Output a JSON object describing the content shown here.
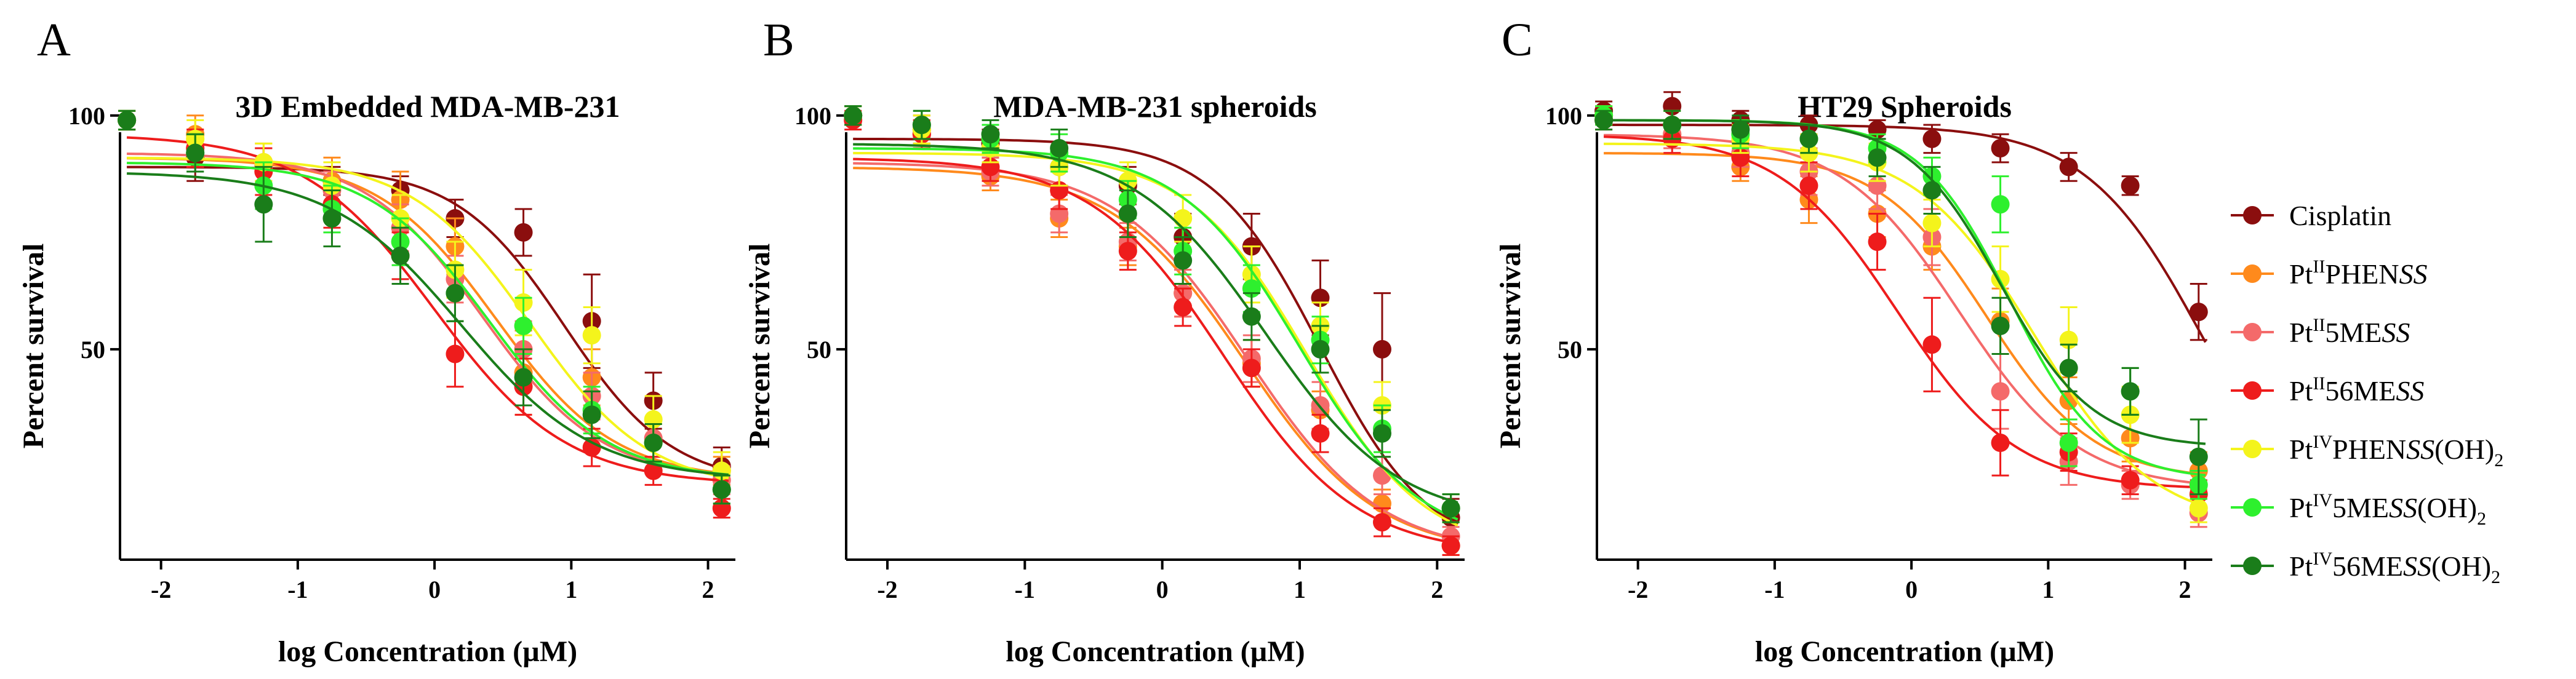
{
  "figure": {
    "legend": [
      {
        "id": "cis",
        "parts": [
          {
            "t": "Cisplatin"
          }
        ]
      },
      {
        "id": "p2phen",
        "parts": [
          {
            "t": "Pt"
          },
          {
            "t": "II",
            "sup": true
          },
          {
            "t": "PHEN"
          },
          {
            "t": "SS",
            "it": true
          }
        ]
      },
      {
        "id": "p2me5",
        "parts": [
          {
            "t": "Pt"
          },
          {
            "t": "II",
            "sup": true
          },
          {
            "t": "5ME"
          },
          {
            "t": "SS",
            "it": true
          }
        ]
      },
      {
        "id": "p2me56",
        "parts": [
          {
            "t": "Pt"
          },
          {
            "t": "II",
            "sup": true
          },
          {
            "t": "56ME"
          },
          {
            "t": "SS",
            "it": true
          }
        ]
      },
      {
        "id": "p4phen",
        "parts": [
          {
            "t": "Pt"
          },
          {
            "t": "IV",
            "sup": true
          },
          {
            "t": "PHEN"
          },
          {
            "t": "SS",
            "it": true
          },
          {
            "t": "(OH)"
          },
          {
            "t": "2",
            "sub": true
          }
        ]
      },
      {
        "id": "p4me5",
        "parts": [
          {
            "t": "Pt"
          },
          {
            "t": "IV",
            "sup": true
          },
          {
            "t": "5ME"
          },
          {
            "t": "SS",
            "it": true
          },
          {
            "t": "(OH)"
          },
          {
            "t": "2",
            "sub": true
          }
        ]
      },
      {
        "id": "p4me56",
        "parts": [
          {
            "t": "Pt"
          },
          {
            "t": "IV",
            "sup": true
          },
          {
            "t": "56ME"
          },
          {
            "t": "SS",
            "it": true
          },
          {
            "t": "(OH)"
          },
          {
            "t": "2",
            "sub": true
          }
        ]
      }
    ],
    "colors": {
      "cis": "#8b0e0e",
      "p2phen": "#ff8a1c",
      "p2me5": "#f46a6a",
      "p2me56": "#ee1c1c",
      "p4phen": "#f4f41c",
      "p4me5": "#2ef02e",
      "p4me56": "#1a7d1a"
    }
  },
  "chart_data": [
    {
      "panel": "A",
      "type": "scatter",
      "title": "3D Embedded MDA-MB-231",
      "xlabel": "log Concentration (µM)",
      "ylabel": "Percent survival",
      "xlim": [
        -2.3,
        2.2
      ],
      "ylim": [
        5,
        103
      ],
      "xticks": [
        -2,
        -1,
        0,
        1,
        2
      ],
      "yticks": [
        50,
        100
      ],
      "x": [
        -2.25,
        -1.75,
        -1.25,
        -0.75,
        -0.25,
        0.15,
        0.65,
        1.15,
        1.6,
        2.1
      ],
      "series": [
        {
          "id": "cis",
          "values": [
            99,
            91,
            89,
            86,
            84,
            78,
            75,
            56,
            39,
            25
          ],
          "errors": [
            2,
            5,
            4,
            3,
            3,
            4,
            5,
            10,
            6,
            4
          ],
          "curve": {
            "top": 89,
            "bottom": 21,
            "ec50": 0.95,
            "slope": 1.1
          }
        },
        {
          "id": "p2phen",
          "values": [
            99,
            96,
            90,
            86,
            82,
            72,
            45,
            44,
            30,
            24
          ],
          "errors": [
            2,
            4,
            4,
            5,
            6,
            6,
            9,
            6,
            4,
            3
          ],
          "curve": {
            "top": 91,
            "bottom": 22,
            "ec50": 0.45,
            "slope": 1.0
          }
        },
        {
          "id": "p2me5",
          "values": [
            99,
            93,
            89,
            84,
            76,
            65,
            50,
            40,
            31,
            22
          ],
          "errors": [
            2,
            4,
            4,
            4,
            5,
            5,
            6,
            5,
            4,
            3
          ],
          "curve": {
            "top": 92,
            "bottom": 22,
            "ec50": 0.35,
            "slope": 1.0
          }
        },
        {
          "id": "p2me56",
          "values": [
            99,
            93,
            88,
            81,
            70,
            49,
            42,
            29,
            24,
            16
          ],
          "errors": [
            2,
            4,
            5,
            5,
            5,
            7,
            6,
            4,
            3,
            2
          ],
          "curve": {
            "top": 96,
            "bottom": 21,
            "ec50": 0.0,
            "slope": 0.9
          }
        },
        {
          "id": "p4phen",
          "values": [
            99,
            95,
            90,
            85,
            78,
            67,
            60,
            53,
            35,
            24
          ],
          "errors": [
            2,
            4,
            4,
            5,
            5,
            6,
            7,
            6,
            5,
            4
          ],
          "curve": {
            "top": 91,
            "bottom": 20,
            "ec50": 0.7,
            "slope": 1.0
          }
        },
        {
          "id": "p4me5",
          "values": [
            99,
            92,
            85,
            80,
            73,
            62,
            55,
            37,
            30,
            20
          ],
          "errors": [
            2,
            4,
            5,
            5,
            5,
            6,
            6,
            5,
            4,
            3
          ],
          "curve": {
            "top": 90,
            "bottom": 22,
            "ec50": 0.4,
            "slope": 1.0
          }
        },
        {
          "id": "p4me56",
          "values": [
            99,
            92,
            81,
            78,
            70,
            62,
            44,
            36,
            30,
            20
          ],
          "errors": [
            2,
            4,
            8,
            6,
            6,
            6,
            6,
            5,
            4,
            3
          ],
          "curve": {
            "top": 88,
            "bottom": 22,
            "ec50": 0.2,
            "slope": 0.9
          }
        }
      ]
    },
    {
      "panel": "B",
      "type": "scatter",
      "title": "MDA-MB-231 spheroids",
      "xlabel": "log Concentration (µM)",
      "ylabel": "Percent survival",
      "xlim": [
        -2.3,
        2.2
      ],
      "ylim": [
        5,
        103
      ],
      "xticks": [
        -2,
        -1,
        0,
        1,
        2
      ],
      "yticks": [
        50,
        100
      ],
      "x": [
        -2.25,
        -1.75,
        -1.25,
        -0.75,
        -0.25,
        0.15,
        0.65,
        1.15,
        1.6,
        2.1
      ],
      "series": [
        {
          "id": "cis",
          "values": [
            100,
            97,
            94,
            89,
            85,
            74,
            72,
            61,
            50,
            14
          ],
          "errors": [
            2,
            3,
            3,
            4,
            4,
            5,
            7,
            8,
            12,
            4
          ],
          "curve": {
            "top": 95,
            "bottom": 6,
            "ec50": 1.15,
            "slope": 1.1
          }
        },
        {
          "id": "p2phen",
          "values": [
            100,
            96,
            87,
            78,
            72,
            62,
            47,
            37,
            17,
            8
          ],
          "errors": [
            2,
            3,
            3,
            4,
            4,
            5,
            5,
            4,
            3,
            2
          ],
          "curve": {
            "top": 89,
            "bottom": 6,
            "ec50": 0.6,
            "slope": 0.9
          }
        },
        {
          "id": "p2me5",
          "values": [
            100,
            96,
            88,
            79,
            73,
            62,
            48,
            38,
            23,
            10
          ],
          "errors": [
            2,
            3,
            3,
            4,
            4,
            5,
            5,
            5,
            4,
            2
          ],
          "curve": {
            "top": 90,
            "bottom": 6,
            "ec50": 0.62,
            "slope": 0.9
          }
        },
        {
          "id": "p2me56",
          "values": [
            99,
            96,
            89,
            84,
            71,
            59,
            46,
            32,
            13,
            8
          ],
          "errors": [
            2,
            3,
            3,
            4,
            4,
            4,
            4,
            4,
            3,
            2
          ],
          "curve": {
            "top": 91,
            "bottom": 6,
            "ec50": 0.45,
            "slope": 0.9
          }
        },
        {
          "id": "p4phen",
          "values": [
            100,
            97,
            93,
            89,
            86,
            78,
            66,
            55,
            38,
            16
          ],
          "errors": [
            2,
            3,
            3,
            4,
            4,
            5,
            6,
            5,
            5,
            3
          ],
          "curve": {
            "top": 92,
            "bottom": 6,
            "ec50": 1.05,
            "slope": 1.0
          }
        },
        {
          "id": "p4me5",
          "values": [
            100,
            98,
            95,
            92,
            82,
            71,
            63,
            52,
            33,
            16
          ],
          "errors": [
            2,
            3,
            3,
            4,
            4,
            5,
            5,
            5,
            5,
            3
          ],
          "curve": {
            "top": 93,
            "bottom": 8,
            "ec50": 1.0,
            "slope": 1.0
          }
        },
        {
          "id": "p4me56",
          "values": [
            100,
            98,
            96,
            93,
            79,
            69,
            57,
            50,
            32,
            16
          ],
          "errors": [
            2,
            3,
            3,
            4,
            5,
            5,
            5,
            5,
            5,
            3
          ],
          "curve": {
            "top": 94,
            "bottom": 13,
            "ec50": 0.75,
            "slope": 0.9
          }
        }
      ]
    },
    {
      "panel": "C",
      "type": "scatter",
      "title": "HT29 Spheroids",
      "xlabel": "log Concentration (µM)",
      "ylabel": "Percent survival",
      "xlim": [
        -2.3,
        2.2
      ],
      "ylim": [
        5,
        103
      ],
      "xticks": [
        -2,
        -1,
        0,
        1,
        2
      ],
      "yticks": [
        50,
        100
      ],
      "x": [
        -2.25,
        -1.75,
        -1.25,
        -0.75,
        -0.25,
        0.15,
        0.65,
        1.15,
        1.6,
        2.1
      ],
      "series": [
        {
          "id": "cis",
          "values": [
            101,
            102,
            99,
            98,
            97,
            95,
            93,
            89,
            85,
            58
          ],
          "errors": [
            2,
            3,
            2,
            2,
            2,
            3,
            3,
            3,
            2,
            6
          ],
          "curve": {
            "top": 98,
            "bottom": 5,
            "ec50": 2.15,
            "slope": 1.0
          }
        },
        {
          "id": "p2phen",
          "values": [
            100,
            96,
            89,
            82,
            79,
            72,
            56,
            39,
            31,
            24
          ],
          "errors": [
            2,
            3,
            3,
            5,
            5,
            5,
            7,
            5,
            5,
            4
          ],
          "curve": {
            "top": 92,
            "bottom": 22,
            "ec50": 0.55,
            "slope": 1.1
          }
        },
        {
          "id": "p2me5",
          "values": [
            100,
            96,
            92,
            88,
            85,
            74,
            41,
            26,
            21,
            15
          ],
          "errors": [
            2,
            3,
            3,
            5,
            5,
            6,
            8,
            5,
            3,
            3
          ],
          "curve": {
            "top": 96,
            "bottom": 20,
            "ec50": 0.35,
            "slope": 1.0
          }
        },
        {
          "id": "p2me56",
          "values": [
            99,
            95,
            91,
            85,
            73,
            51,
            30,
            28,
            22,
            19
          ],
          "errors": [
            2,
            3,
            4,
            5,
            6,
            10,
            7,
            4,
            3,
            3
          ],
          "curve": {
            "top": 96,
            "bottom": 20,
            "ec50": -0.1,
            "slope": 1.0
          }
        },
        {
          "id": "p4phen",
          "values": [
            100,
            98,
            95,
            92,
            90,
            77,
            65,
            52,
            36,
            16
          ],
          "errors": [
            2,
            3,
            3,
            4,
            4,
            5,
            7,
            7,
            6,
            3
          ],
          "curve": {
            "top": 94,
            "bottom": 12,
            "ec50": 0.9,
            "slope": 1.0
          }
        },
        {
          "id": "p4me5",
          "values": [
            100,
            98,
            96,
            95,
            93,
            87,
            81,
            30,
            41,
            21
          ],
          "errors": [
            2,
            3,
            3,
            3,
            3,
            4,
            6,
            5,
            5,
            3
          ],
          "curve": {
            "top": 99,
            "bottom": 22,
            "ec50": 0.72,
            "slope": 1.3
          }
        },
        {
          "id": "p4me56",
          "values": [
            99,
            98,
            97,
            95,
            91,
            84,
            55,
            46,
            41,
            27
          ],
          "errors": [
            2,
            3,
            3,
            3,
            4,
            5,
            6,
            5,
            5,
            8
          ],
          "curve": {
            "top": 99,
            "bottom": 29,
            "ec50": 0.65,
            "slope": 1.3
          }
        }
      ]
    }
  ]
}
